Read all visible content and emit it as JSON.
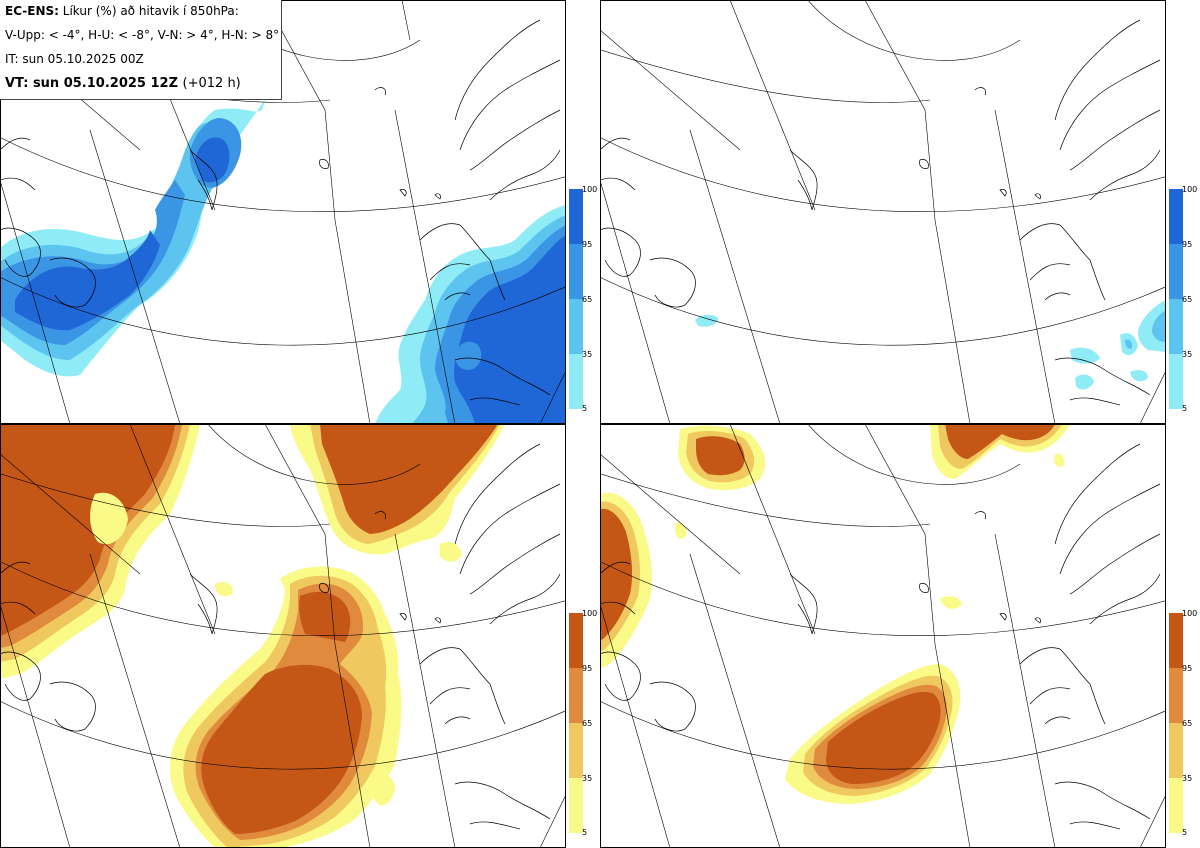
{
  "header": {
    "line1_bold": "EC-ENS:",
    "line1_rest": "Líkur (%) að hitavik í 850hPa:",
    "line2": "V-Upp: < -4°, H-U: < -8°, V-N: > 4°, H-N: > 8°",
    "line3": "IT: sun 05.10.2025 00Z",
    "line4_bold": "VT: sun 05.10.2025 12Z",
    "line4_rest": "(+012 h)"
  },
  "colorbar_cold": {
    "labels": [
      "100",
      "95",
      "65",
      "35",
      "5"
    ],
    "colors": [
      "#1f66d6",
      "#3b95e5",
      "#5dc4f0",
      "#8fecf6"
    ]
  },
  "colorbar_warm": {
    "labels": [
      "100",
      "95",
      "65",
      "35",
      "5"
    ],
    "colors": [
      "#c45616",
      "#df8a3c",
      "#f0c860",
      "#fafa88"
    ]
  },
  "panels": [
    {
      "id": "top-left",
      "label": "V-Upp",
      "colors": "cold"
    },
    {
      "id": "top-right",
      "label": "H-U",
      "colors": "cold"
    },
    {
      "id": "bottom-left",
      "label": "V-N",
      "colors": "warm"
    },
    {
      "id": "bottom-right",
      "label": "H-N",
      "colors": "warm"
    }
  ]
}
